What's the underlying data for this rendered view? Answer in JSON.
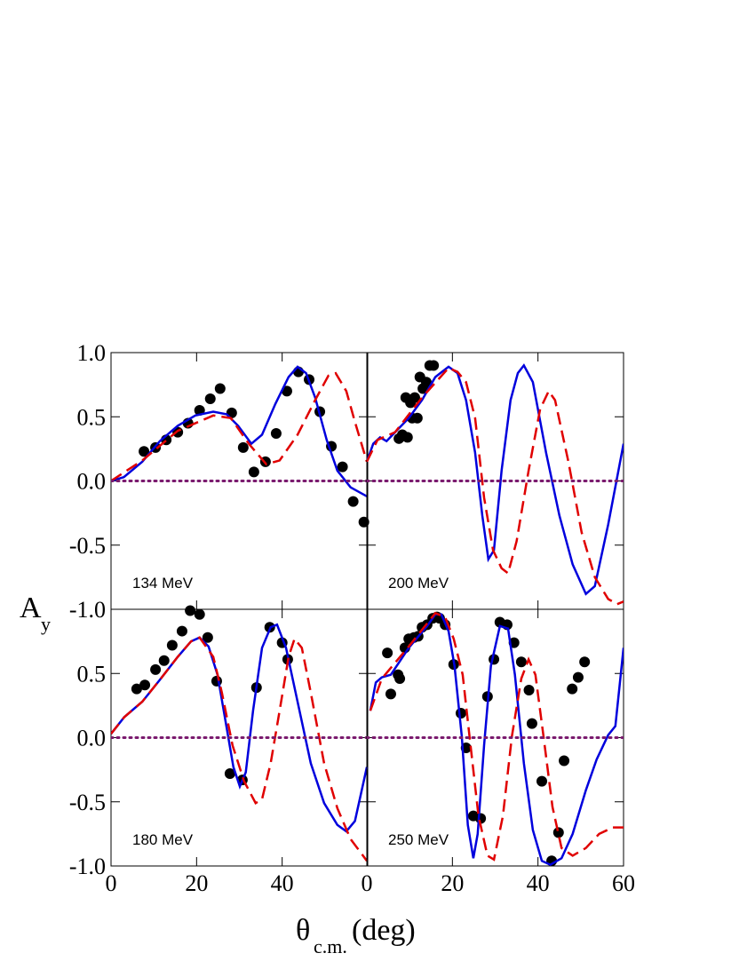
{
  "figure": {
    "y_label": "A",
    "y_label_sub": "y",
    "x_label": "θ",
    "x_label_sub": "c.m.",
    "x_label_unit": "(deg)"
  },
  "chart_data": [
    {
      "type": "line",
      "annotation": "134 MeV",
      "xlim": [
        0,
        60
      ],
      "ylim": [
        -1,
        1
      ],
      "yticks": [
        {
          "value": 1,
          "label": "1.0"
        },
        {
          "value": 0.5,
          "label": "0.5"
        },
        {
          "value": 0,
          "label": "0.0"
        },
        {
          "value": -0.5,
          "label": "-0.5"
        },
        {
          "value": -1,
          "label": "-1.0"
        }
      ],
      "series": [
        {
          "style": "markers",
          "color": "#000000",
          "x": [
            7.7,
            10.4,
            12.9,
            15.6,
            18.0,
            20.7,
            23.2,
            25.5,
            28.2,
            30.9,
            33.4,
            36.1,
            38.6,
            41.1,
            43.8,
            46.3,
            48.8,
            51.5,
            54.1,
            56.6,
            59.1
          ],
          "values": [
            0.23,
            0.26,
            0.32,
            0.38,
            0.45,
            0.55,
            0.64,
            0.72,
            0.53,
            0.26,
            0.07,
            0.15,
            0.37,
            0.7,
            0.85,
            0.79,
            0.54,
            0.27,
            0.11,
            -0.16,
            -0.32
          ]
        },
        {
          "style": "solid",
          "color": "#0000dd",
          "x": [
            0,
            3,
            7.3,
            11.4,
            15.6,
            19.7,
            23.9,
            27,
            29.7,
            32.8,
            35.3,
            38.4,
            41.5,
            43.6,
            45.6,
            47.7,
            50.4,
            52.9,
            56,
            59.8
          ],
          "values": [
            0,
            0.03,
            0.15,
            0.31,
            0.43,
            0.51,
            0.54,
            0.52,
            0.43,
            0.29,
            0.36,
            0.6,
            0.81,
            0.89,
            0.84,
            0.65,
            0.32,
            0.08,
            -0.05,
            -0.12
          ]
        },
        {
          "style": "dashed",
          "color": "#e00000",
          "x": [
            0,
            7.3,
            15.6,
            23.9,
            28,
            32.2,
            36.3,
            39.4,
            43.6,
            47.7,
            50.8,
            52.5,
            55,
            57,
            59.8
          ],
          "values": [
            0,
            0.16,
            0.39,
            0.51,
            0.49,
            0.29,
            0.13,
            0.16,
            0.36,
            0.63,
            0.82,
            0.84,
            0.7,
            0.46,
            0.15
          ]
        },
        {
          "style": "dotted",
          "color": "#7a1a6e",
          "x": [
            0,
            60
          ],
          "values": [
            0,
            0
          ]
        }
      ]
    },
    {
      "type": "line",
      "annotation": "200 MeV",
      "xlim": [
        0,
        60
      ],
      "ylim": [
        -1,
        1
      ],
      "series": [
        {
          "style": "markers",
          "color": "#000000",
          "x": [
            7.5,
            8.3,
            9.1,
            9.5,
            10.2,
            10.6,
            11.2,
            11.8,
            12.4,
            13.1,
            13.9,
            14.7,
            15.6
          ],
          "values": [
            0.33,
            0.36,
            0.65,
            0.34,
            0.61,
            0.49,
            0.65,
            0.49,
            0.81,
            0.72,
            0.77,
            0.9,
            0.9
          ]
        },
        {
          "style": "solid",
          "color": "#0000dd",
          "x": [
            0,
            1.5,
            3.1,
            4.6,
            6.6,
            9.8,
            12.9,
            16,
            19.1,
            21.2,
            23.2,
            25.3,
            27,
            28.4,
            29.7,
            31.5,
            33.6,
            35.3,
            36.7,
            38.8,
            41.9,
            45,
            48.1,
            51.2,
            53.3,
            56.4,
            60
          ],
          "values": [
            0.15,
            0.29,
            0.34,
            0.31,
            0.38,
            0.49,
            0.63,
            0.81,
            0.89,
            0.84,
            0.63,
            0.22,
            -0.27,
            -0.61,
            -0.54,
            0.08,
            0.63,
            0.84,
            0.9,
            0.77,
            0.22,
            -0.27,
            -0.65,
            -0.88,
            -0.82,
            -0.34,
            0.29
          ]
        },
        {
          "style": "dashed",
          "color": "#e00000",
          "x": [
            0,
            2.5,
            6.6,
            12.9,
            19.1,
            21.2,
            23.2,
            25.3,
            27.4,
            29.5,
            31.5,
            33,
            35,
            37.8,
            40.5,
            42.5,
            44,
            47.1,
            50.2,
            53.3,
            56.4,
            58.5,
            60
          ],
          "values": [
            0.15,
            0.32,
            0.38,
            0.65,
            0.88,
            0.85,
            0.77,
            0.49,
            -0.13,
            -0.54,
            -0.68,
            -0.72,
            -0.47,
            0.08,
            0.56,
            0.7,
            0.63,
            0.15,
            -0.4,
            -0.75,
            -0.92,
            -0.96,
            -0.94
          ]
        },
        {
          "style": "dotted",
          "color": "#7a1a6e",
          "x": [
            0,
            60
          ],
          "values": [
            0,
            0
          ]
        }
      ]
    },
    {
      "type": "line",
      "annotation": "180 MeV",
      "xlim": [
        0,
        60
      ],
      "ylim": [
        -1,
        1
      ],
      "xticks": [
        0,
        20,
        40
      ],
      "yticks": [
        {
          "value": 0.5,
          "label": "0.5"
        },
        {
          "value": 0,
          "label": "0.0"
        },
        {
          "value": -0.5,
          "label": "-0.5"
        },
        {
          "value": -1,
          "label": "-1.0"
        }
      ],
      "series": [
        {
          "style": "markers",
          "color": "#000000",
          "x": [
            6.0,
            7.9,
            10.4,
            12.4,
            14.3,
            16.6,
            18.5,
            20.7,
            22.6,
            24.7,
            27.8,
            30.7,
            34.0,
            37.1,
            40.0,
            41.3
          ],
          "values": [
            0.38,
            0.41,
            0.53,
            0.6,
            0.72,
            0.83,
            0.99,
            0.96,
            0.78,
            0.44,
            -0.28,
            -0.33,
            0.39,
            0.86,
            0.74,
            0.61
          ]
        },
        {
          "style": "solid",
          "color": "#0000dd",
          "x": [
            0,
            3.1,
            7.3,
            11.4,
            15.6,
            18.7,
            20.7,
            22.8,
            24.9,
            27,
            28.6,
            30.1,
            31.5,
            33.2,
            35.3,
            37.3,
            38.8,
            40.9,
            43.6,
            46.7,
            49.8,
            52.9,
            55,
            57,
            59.8
          ],
          "values": [
            0.03,
            0.16,
            0.28,
            0.45,
            0.63,
            0.75,
            0.78,
            0.71,
            0.49,
            0.08,
            -0.23,
            -0.38,
            -0.27,
            0.21,
            0.7,
            0.86,
            0.88,
            0.7,
            0.28,
            -0.2,
            -0.51,
            -0.68,
            -0.73,
            -0.65,
            -0.23
          ]
        },
        {
          "style": "dashed",
          "color": "#e00000",
          "x": [
            0,
            3.1,
            7.3,
            11.4,
            15.6,
            18.7,
            20.7,
            23.9,
            25.9,
            28.4,
            31.1,
            33.8,
            35.3,
            37.3,
            39.4,
            41.5,
            42.9,
            44.6,
            46.7,
            49.8,
            52.9,
            56,
            59.8
          ],
          "values": [
            0.03,
            0.16,
            0.28,
            0.45,
            0.63,
            0.75,
            0.78,
            0.63,
            0.35,
            -0.06,
            -0.34,
            -0.51,
            -0.48,
            -0.2,
            0.21,
            0.63,
            0.77,
            0.7,
            0.35,
            -0.2,
            -0.55,
            -0.79,
            -0.96
          ]
        },
        {
          "style": "dotted",
          "color": "#7a1a6e",
          "x": [
            0,
            60
          ],
          "values": [
            0,
            0
          ]
        }
      ]
    },
    {
      "type": "line",
      "annotation": "250 MeV",
      "xlim": [
        0,
        60
      ],
      "ylim": [
        -1,
        1
      ],
      "xticks": [
        0,
        20,
        40,
        60
      ],
      "series": [
        {
          "style": "markers",
          "color": "#000000",
          "x": [
            4.8,
            5.6,
            7.3,
            7.7,
            8.9,
            9.8,
            11.0,
            12.0,
            12.9,
            14.1,
            15.4,
            16.4,
            17.0,
            18.3,
            20.3,
            22.0,
            23.2,
            24.9,
            26.6,
            28.2,
            29.7,
            31.1,
            32.8,
            34.4,
            36.1,
            37.9,
            38.6,
            40.9,
            43.2,
            44.8,
            46.1,
            48.0,
            49.4,
            50.9
          ],
          "values": [
            0.66,
            0.34,
            0.49,
            0.46,
            0.7,
            0.77,
            0.78,
            0.79,
            0.86,
            0.88,
            0.93,
            0.94,
            0.93,
            0.88,
            0.57,
            0.19,
            -0.08,
            -0.61,
            -0.63,
            0.32,
            0.61,
            0.9,
            0.88,
            0.74,
            0.59,
            0.37,
            0.11,
            -0.34,
            -0.96,
            -0.74,
            -0.18,
            0.38,
            0.47,
            0.59
          ]
        },
        {
          "style": "solid",
          "color": "#0000dd",
          "x": [
            0.8,
            2.1,
            3.5,
            5.6,
            9.8,
            14.1,
            16.0,
            17.4,
            19.1,
            20.5,
            22.2,
            23.6,
            24.9,
            25.9,
            27.4,
            29,
            31.1,
            33,
            34.6,
            36.7,
            38.8,
            40.9,
            42.9,
            45.5,
            48.1,
            51.2,
            53.7,
            56.4,
            58.1,
            60
          ],
          "values": [
            0.21,
            0.43,
            0.47,
            0.49,
            0.7,
            0.87,
            0.96,
            0.96,
            0.83,
            0.56,
            0.01,
            -0.68,
            -0.94,
            -0.75,
            -0.06,
            0.56,
            0.87,
            0.85,
            0.49,
            -0.2,
            -0.72,
            -0.96,
            -0.99,
            -0.94,
            -0.75,
            -0.41,
            -0.17,
            0.02,
            0.09,
            0.7
          ]
        },
        {
          "style": "dashed",
          "color": "#e00000",
          "x": [
            0.8,
            3.5,
            9.8,
            16,
            18.3,
            20.3,
            22.4,
            24,
            26.1,
            28.2,
            29.7,
            31.8,
            33.9,
            36.1,
            37.8,
            39.4,
            41.3,
            43.4,
            45.5,
            48.1,
            51.2,
            54.3,
            57.5,
            60
          ],
          "values": [
            0.21,
            0.46,
            0.71,
            0.97,
            0.94,
            0.77,
            0.49,
            0.01,
            -0.61,
            -0.92,
            -0.95,
            -0.61,
            0.01,
            0.46,
            0.61,
            0.49,
            0.01,
            -0.54,
            -0.86,
            -0.92,
            -0.86,
            -0.75,
            -0.7,
            -0.7
          ]
        },
        {
          "style": "dotted",
          "color": "#7a1a6e",
          "x": [
            0,
            60
          ],
          "values": [
            0,
            0
          ]
        }
      ]
    }
  ]
}
